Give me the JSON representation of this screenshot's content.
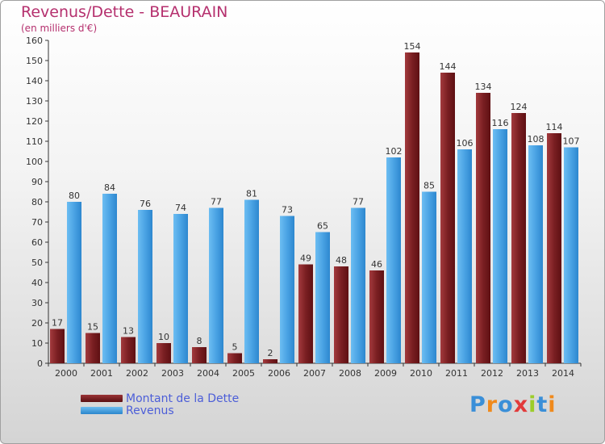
{
  "chart_data": {
    "type": "bar",
    "title": "Revenus/Dette - BEAURAIN",
    "subtitle": "(en milliers d'€)",
    "categories": [
      "2000",
      "2001",
      "2002",
      "2003",
      "2004",
      "2005",
      "2006",
      "2007",
      "2008",
      "2009",
      "2010",
      "2011",
      "2012",
      "2013",
      "2014"
    ],
    "series": [
      {
        "name": "Montant de la Dette",
        "color": "#7a1f22",
        "values": [
          17,
          15,
          13,
          10,
          8,
          5,
          2,
          49,
          48,
          46,
          154,
          144,
          134,
          124,
          114
        ]
      },
      {
        "name": "Revenus",
        "color": "#4aa3e4",
        "values": [
          80,
          84,
          76,
          74,
          77,
          81,
          73,
          65,
          77,
          102,
          85,
          106,
          116,
          108,
          107
        ]
      }
    ],
    "ylim": [
      0,
      160
    ],
    "yticks": [
      0,
      10,
      20,
      30,
      40,
      50,
      60,
      70,
      80,
      90,
      100,
      110,
      120,
      130,
      140,
      150,
      160
    ],
    "grid": false,
    "legend_position": "bottom-left"
  },
  "legend": {
    "items": [
      {
        "label": "Montant de la Dette",
        "color": "#7a1f22"
      },
      {
        "label": "Revenus",
        "color": "#4aa3e4"
      }
    ]
  },
  "logo": {
    "text": "Proxiti"
  }
}
